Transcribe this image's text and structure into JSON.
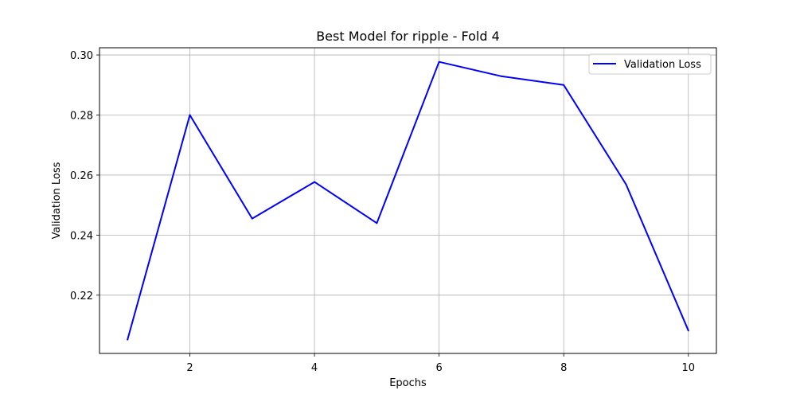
{
  "chart_data": {
    "type": "line",
    "title": "Best Model for ripple - Fold 4",
    "xlabel": "Epochs",
    "ylabel": "Validation Loss",
    "x": [
      1,
      2,
      3,
      4,
      5,
      6,
      7,
      8,
      9,
      10
    ],
    "series": [
      {
        "name": "Validation Loss",
        "color": "#0000ff",
        "values": [
          0.2052,
          0.28,
          0.2455,
          0.2577,
          0.244,
          0.2977,
          0.2929,
          0.29,
          0.2569,
          0.2082
        ]
      }
    ],
    "xlim": [
      0.55,
      10.45
    ],
    "ylim": [
      0.2006,
      0.3024
    ],
    "xticks": [
      2,
      4,
      6,
      8,
      10
    ],
    "xtick_labels": [
      "2",
      "4",
      "6",
      "8",
      "10"
    ],
    "yticks": [
      0.22,
      0.24,
      0.26,
      0.28,
      0.3
    ],
    "ytick_labels": [
      "0.22",
      "0.24",
      "0.26",
      "0.28",
      "0.30"
    ],
    "grid": true,
    "legend_position": "top-right"
  }
}
